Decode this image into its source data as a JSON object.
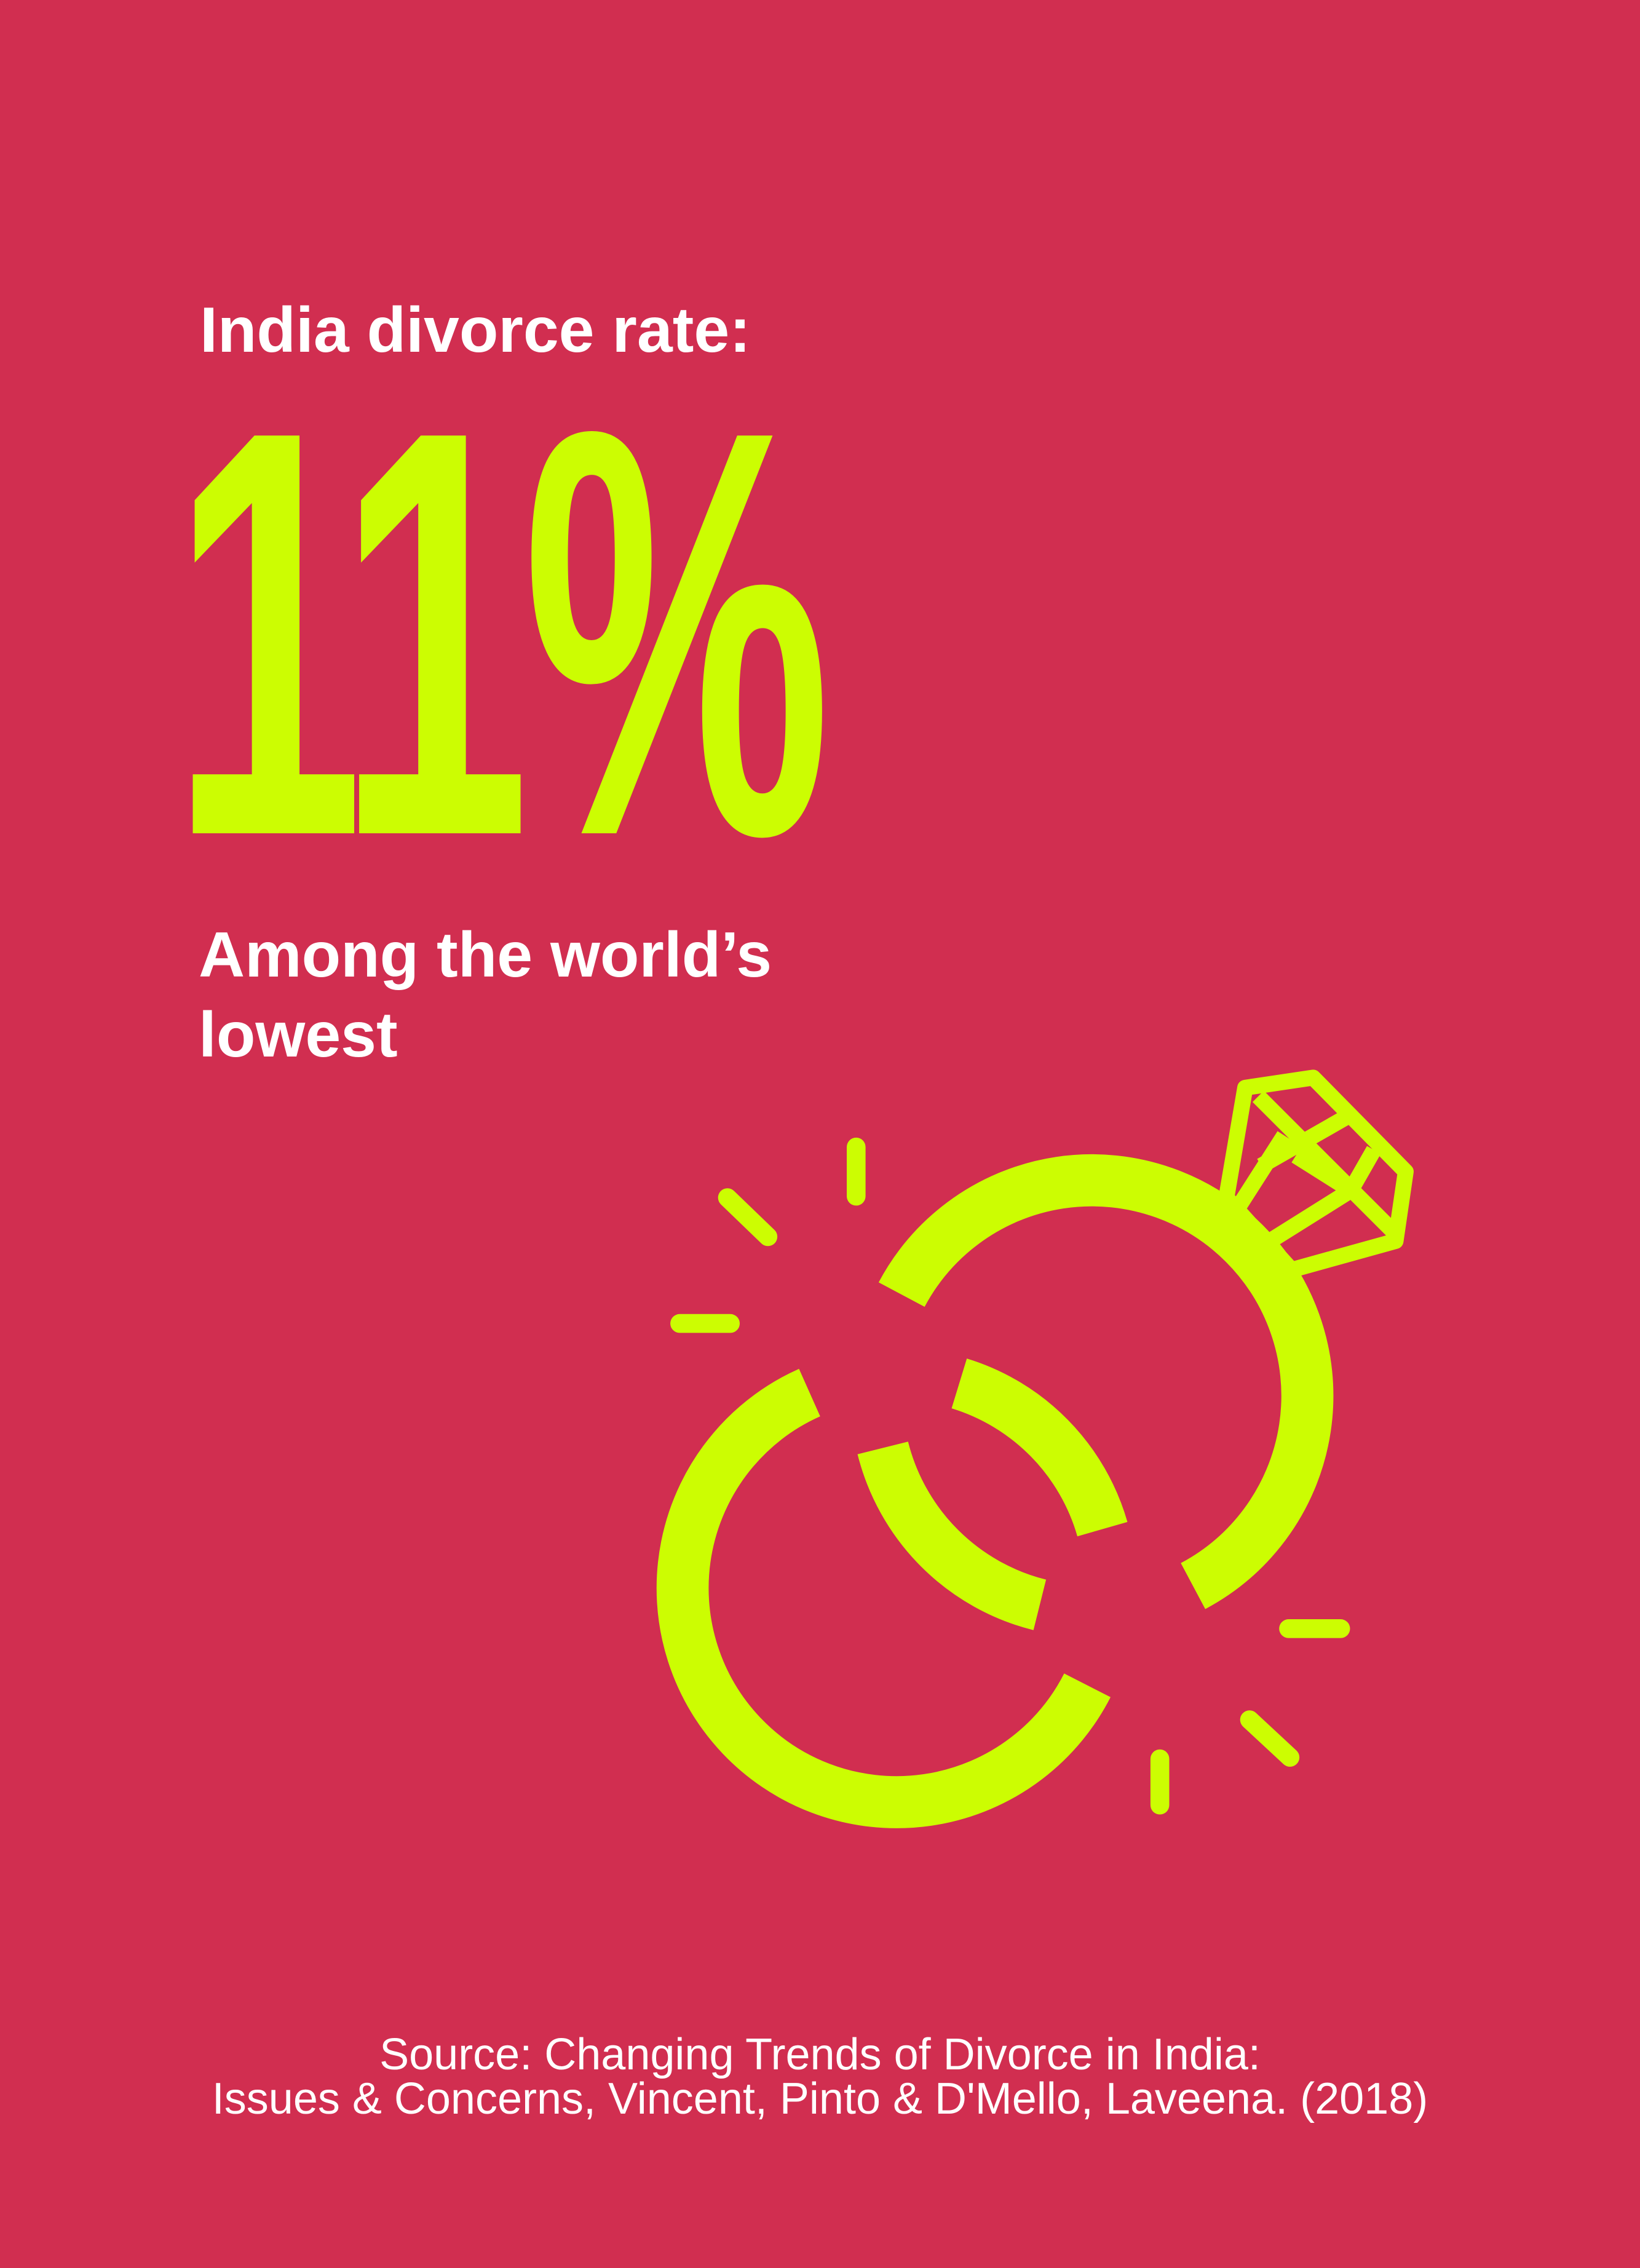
{
  "headline": "India divorce rate:",
  "value": "11%",
  "subtitle_line1": "Among the world’s",
  "subtitle_line2": "lowest",
  "source_line1": "Source: Changing Trends of Divorce in India:",
  "source_line2": "Issues & Concerns, Vincent, Pinto & D'Mello, Laveena. (2018)",
  "colors": {
    "background": "#d12e50",
    "accent": "#ccfd02",
    "text": "#ffffff"
  },
  "illustration": "interlocked-wedding-rings-icon"
}
